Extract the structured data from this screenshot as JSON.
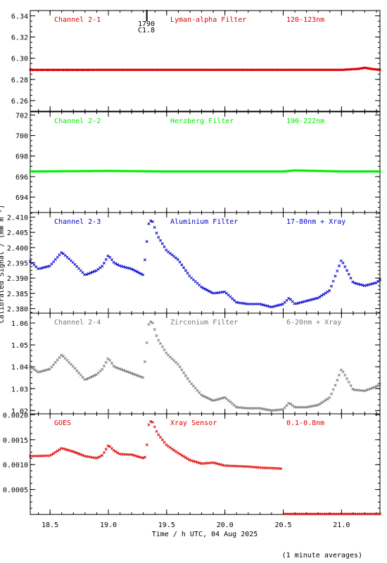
{
  "page": {
    "ylabel": "Calibrated Signal / (mW m⁻²)",
    "xlabel": "Time / h UTC, 04 Aug 2025",
    "footnote": "(1 minute averages)",
    "marker": {
      "number": "1790",
      "flare_class": "C1.8",
      "time_h": 19.33
    }
  },
  "colors": {
    "red": "#e00000",
    "green": "#00ee00",
    "blue": "#0000cc",
    "gray": "#777777"
  },
  "chart_data": [
    {
      "type": "scatter",
      "channel": "Channel 2-1",
      "filter": "Lyman-alpha Filter",
      "band": "120-123nm",
      "color": "red",
      "xlim": [
        18.33,
        21.33
      ],
      "ylim": [
        6.25,
        6.345
      ],
      "yticks": [
        "6.26",
        "6.28",
        "6.30",
        "6.32",
        "6.34"
      ],
      "x": [
        18.33,
        19.5,
        19.75,
        20.0,
        20.5,
        21.0,
        21.15,
        21.2,
        21.25,
        21.33
      ],
      "y": [
        6.289,
        6.289,
        6.289,
        6.289,
        6.289,
        6.289,
        6.29,
        6.291,
        6.29,
        6.289
      ]
    },
    {
      "type": "scatter",
      "channel": "Channel 2-2",
      "filter": "Herzberg Filter",
      "band": "190-222nm",
      "color": "green",
      "xlim": [
        18.33,
        21.33
      ],
      "ylim": [
        692.5,
        702.3
      ],
      "yticks": [
        "694",
        "696",
        "698",
        "700",
        "702"
      ],
      "x": [
        18.33,
        19.0,
        19.5,
        20.0,
        20.5,
        20.6,
        21.0,
        21.33
      ],
      "y": [
        696.5,
        696.55,
        696.5,
        696.5,
        696.5,
        696.6,
        696.5,
        696.5
      ]
    },
    {
      "type": "scatter",
      "channel": "Channel 2-3",
      "filter": "Aluminium Filter",
      "band": "17-80nm + Xray",
      "color": "blue",
      "xlim": [
        18.33,
        21.33
      ],
      "ylim": [
        2.3785,
        2.4115
      ],
      "yticks": [
        "2.380",
        "2.385",
        "2.390",
        "2.395",
        "2.400",
        "2.405",
        "2.410"
      ],
      "x": [
        18.33,
        18.4,
        18.5,
        18.6,
        18.7,
        18.8,
        18.9,
        18.95,
        19.0,
        19.05,
        19.1,
        19.2,
        19.3,
        19.32,
        19.35,
        19.38,
        19.42,
        19.5,
        19.6,
        19.7,
        19.8,
        19.9,
        20.0,
        20.1,
        20.2,
        20.3,
        20.4,
        20.5,
        20.55,
        20.6,
        20.7,
        20.8,
        20.9,
        20.95,
        21.0,
        21.1,
        21.2,
        21.3,
        21.33
      ],
      "y": [
        2.3955,
        2.393,
        2.394,
        2.3985,
        2.395,
        2.391,
        2.3925,
        2.394,
        2.3975,
        2.395,
        2.394,
        2.393,
        2.391,
        2.3985,
        2.409,
        2.4085,
        2.404,
        2.399,
        2.396,
        2.3905,
        2.387,
        2.385,
        2.3855,
        2.382,
        2.3815,
        2.3815,
        2.3805,
        2.3815,
        2.3835,
        2.3815,
        2.3825,
        2.3835,
        2.386,
        2.391,
        2.396,
        2.3885,
        2.3875,
        2.3885,
        2.3895
      ]
    },
    {
      "type": "scatter",
      "channel": "Channel 2-4",
      "filter": "Zirconium Filter",
      "band": "6-20nm + Xray",
      "color": "gray",
      "xlim": [
        18.33,
        21.33
      ],
      "ylim": [
        1.0185,
        1.0645
      ],
      "yticks": [
        "1.02",
        "1.03",
        "1.04",
        "1.05",
        "1.06"
      ],
      "x": [
        18.33,
        18.4,
        18.5,
        18.6,
        18.7,
        18.8,
        18.9,
        18.95,
        19.0,
        19.05,
        19.1,
        19.2,
        19.3,
        19.32,
        19.35,
        19.38,
        19.42,
        19.5,
        19.6,
        19.7,
        19.8,
        19.9,
        20.0,
        20.1,
        20.2,
        20.3,
        20.4,
        20.5,
        20.55,
        20.6,
        20.7,
        20.8,
        20.9,
        20.95,
        21.0,
        21.1,
        21.2,
        21.3,
        21.33
      ],
      "y": [
        1.04,
        1.0375,
        1.039,
        1.0455,
        1.04,
        1.034,
        1.0365,
        1.039,
        1.044,
        1.04,
        1.039,
        1.037,
        1.035,
        1.046,
        1.061,
        1.06,
        1.053,
        1.046,
        1.041,
        1.033,
        1.027,
        1.0245,
        1.026,
        1.0215,
        1.021,
        1.021,
        1.02,
        1.0205,
        1.0235,
        1.0215,
        1.0215,
        1.0225,
        1.026,
        1.032,
        1.039,
        1.0295,
        1.029,
        1.031,
        1.032
      ]
    },
    {
      "type": "scatter",
      "channel": "GOES",
      "filter": "Xray Sensor",
      "band": "0.1-0.8nm",
      "color": "red",
      "xlim": [
        18.33,
        21.33
      ],
      "ylim": [
        0.0,
        0.00202
      ],
      "yticks": [
        "0.0005",
        "0.0010",
        "0.0015",
        "0.0020"
      ],
      "x": [
        18.33,
        18.5,
        18.6,
        18.7,
        18.8,
        18.9,
        18.95,
        19.0,
        19.05,
        19.1,
        19.2,
        19.3,
        19.32,
        19.35,
        19.38,
        19.42,
        19.5,
        19.6,
        19.7,
        19.8,
        19.9,
        20.0,
        20.1,
        20.2,
        20.3,
        20.4,
        20.48,
        20.5,
        21.0,
        21.33
      ],
      "y": [
        0.00117,
        0.00118,
        0.00133,
        0.00126,
        0.00117,
        0.00113,
        0.00119,
        0.00139,
        0.00128,
        0.00121,
        0.0012,
        0.00113,
        0.00116,
        0.00188,
        0.00185,
        0.00163,
        0.00139,
        0.00123,
        0.00109,
        0.00102,
        0.00104,
        0.00098,
        0.00097,
        0.00096,
        0.00094,
        0.00093,
        0.00092,
        1e-05,
        1e-05,
        1e-05
      ]
    }
  ],
  "xaxis": {
    "ticks": [
      18.5,
      19.0,
      19.5,
      20.0,
      20.5,
      21.0
    ],
    "tick_labels": [
      "18.5",
      "19.0",
      "19.5",
      "20.0",
      "20.5",
      "21.0"
    ]
  }
}
